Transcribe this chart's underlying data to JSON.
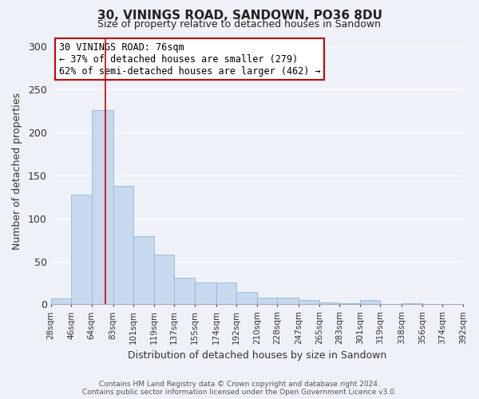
{
  "title": "30, VININGS ROAD, SANDOWN, PO36 8DU",
  "subtitle": "Size of property relative to detached houses in Sandown",
  "xlabel": "Distribution of detached houses by size in Sandown",
  "ylabel": "Number of detached properties",
  "bar_color": "#c8d8ee",
  "bar_edge_color": "#90b8d8",
  "background_color": "#eef2f8",
  "plot_bg_color": "#eef2f8",
  "grid_color": "#ffffff",
  "vline_value": 76,
  "vline_color": "#cc0000",
  "bin_edges": [
    28,
    46,
    64,
    83,
    101,
    119,
    137,
    155,
    174,
    192,
    210,
    228,
    247,
    265,
    283,
    301,
    319,
    338,
    356,
    374,
    392
  ],
  "bin_labels": [
    "28sqm",
    "46sqm",
    "64sqm",
    "83sqm",
    "101sqm",
    "119sqm",
    "137sqm",
    "155sqm",
    "174sqm",
    "192sqm",
    "210sqm",
    "228sqm",
    "247sqm",
    "265sqm",
    "283sqm",
    "301sqm",
    "319sqm",
    "338sqm",
    "356sqm",
    "374sqm",
    "392sqm"
  ],
  "counts": [
    7,
    128,
    226,
    138,
    79,
    58,
    31,
    25,
    25,
    14,
    8,
    8,
    5,
    2,
    1,
    5,
    0,
    1,
    0,
    0
  ],
  "ylim": [
    0,
    310
  ],
  "yticks": [
    0,
    50,
    100,
    150,
    200,
    250,
    300
  ],
  "annotation_title": "30 VININGS ROAD: 76sqm",
  "annotation_line1": "← 37% of detached houses are smaller (279)",
  "annotation_line2": "62% of semi-detached houses are larger (462) →",
  "annotation_box_color": "#ffffff",
  "annotation_box_edge": "#cc0000",
  "footer_line1": "Contains HM Land Registry data © Crown copyright and database right 2024.",
  "footer_line2": "Contains public sector information licensed under the Open Government Licence v3.0."
}
